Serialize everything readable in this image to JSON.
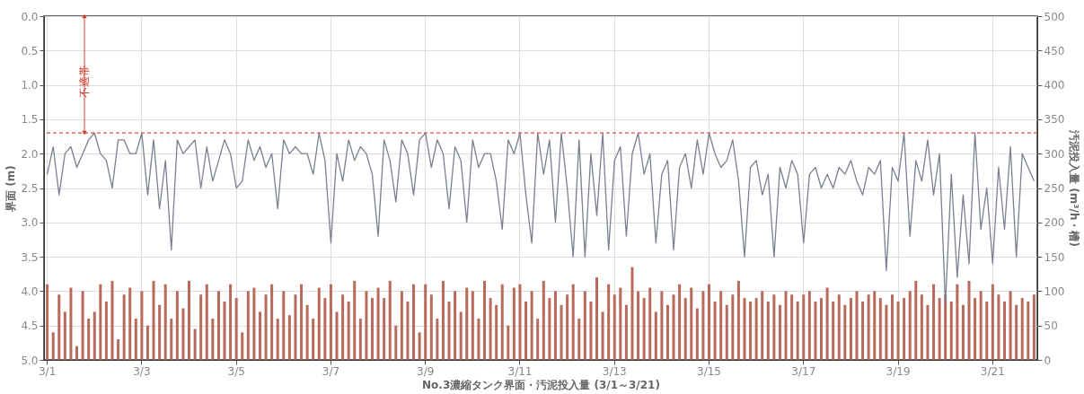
{
  "chart_data": {
    "type": "bar",
    "xlabel": "No.3濃縮タンク界面・汚泥投入量 (3/1～3/21)",
    "ylabel": "界面 (m)",
    "y2label": "汚泥投入量 (m³/h・槽)",
    "categories": [
      "3/1",
      null,
      null,
      null,
      null,
      null,
      null,
      null,
      null,
      null,
      null,
      null,
      null,
      null,
      null,
      null,
      "3/3",
      null,
      null,
      null,
      null,
      null,
      null,
      null,
      null,
      null,
      null,
      null,
      null,
      null,
      null,
      null,
      "3/5",
      null,
      null,
      null,
      null,
      null,
      null,
      null,
      null,
      null,
      null,
      null,
      null,
      null,
      null,
      null,
      "3/7",
      null,
      null,
      null,
      null,
      null,
      null,
      null,
      null,
      null,
      null,
      null,
      null,
      null,
      null,
      null,
      "3/9",
      null,
      null,
      null,
      null,
      null,
      null,
      null,
      null,
      null,
      null,
      null,
      null,
      null,
      null,
      null,
      "3/11",
      null,
      null,
      null,
      null,
      null,
      null,
      null,
      null,
      null,
      null,
      null,
      null,
      null,
      null,
      null,
      "3/13",
      null,
      null,
      null,
      null,
      null,
      null,
      null,
      null,
      null,
      null,
      null,
      null,
      null,
      null,
      null,
      "3/15",
      null,
      null,
      null,
      null,
      null,
      null,
      null,
      null,
      null,
      null,
      null,
      null,
      null,
      null,
      null,
      "3/17",
      null,
      null,
      null,
      null,
      null,
      null,
      null,
      null,
      null,
      null,
      null,
      null,
      null,
      null,
      null,
      "3/19",
      null,
      null,
      null,
      null,
      null,
      null,
      null,
      null,
      null,
      null,
      null,
      null,
      null,
      null,
      null,
      "3/21",
      null,
      null,
      null,
      null,
      null,
      null,
      null
    ],
    "series": [
      {
        "axis": "y2",
        "color": "#b86b5a",
        "values": [
          110,
          40,
          95,
          70,
          105,
          20,
          100,
          60,
          70,
          110,
          85,
          115,
          30,
          95,
          105,
          60,
          100,
          50,
          115,
          80,
          110,
          60,
          100,
          75,
          115,
          45,
          95,
          110,
          60,
          100,
          85,
          110,
          90,
          40,
          100,
          105,
          70,
          95,
          110,
          60,
          100,
          65,
          95,
          110,
          80,
          60,
          105,
          90,
          110,
          70,
          95,
          85,
          115,
          60,
          100,
          90,
          105,
          90,
          115,
          50,
          100,
          85,
          110,
          40,
          110,
          95,
          60,
          115,
          85,
          100,
          70,
          105,
          100,
          60,
          115,
          90,
          80,
          110,
          50,
          105,
          110,
          85,
          100,
          60,
          115,
          90,
          100,
          80,
          95,
          110,
          60,
          100,
          85,
          120,
          70,
          110,
          95,
          105,
          80,
          135,
          100,
          90,
          105,
          70,
          100,
          80,
          95,
          110,
          90,
          105,
          75,
          100,
          110,
          85,
          100,
          80,
          95,
          115,
          90,
          85,
          90,
          100,
          85,
          95,
          80,
          100,
          95,
          85,
          95,
          100,
          85,
          90,
          105,
          85,
          95,
          80,
          90,
          100,
          85,
          95,
          100,
          90,
          80,
          95,
          85,
          90,
          100,
          115,
          95,
          80,
          110,
          90,
          95,
          85,
          110,
          80,
          115,
          90,
          100,
          85,
          110,
          95,
          85,
          100,
          80,
          90,
          85,
          95
        ]
      },
      {
        "type": "line",
        "color": "#7a8090",
        "values": [
          2.3,
          1.9,
          2.6,
          2.0,
          1.9,
          2.2,
          2.0,
          1.8,
          1.7,
          2.0,
          2.1,
          2.5,
          1.8,
          1.8,
          2.0,
          2.0,
          1.7,
          2.6,
          1.8,
          2.8,
          2.1,
          3.4,
          1.8,
          2.0,
          1.9,
          1.8,
          2.5,
          1.9,
          2.4,
          2.1,
          1.8,
          2.0,
          2.5,
          2.4,
          1.8,
          2.1,
          1.9,
          2.2,
          2.0,
          2.8,
          1.8,
          2.0,
          1.9,
          2.0,
          2.0,
          2.3,
          1.7,
          2.1,
          3.3,
          2.0,
          2.4,
          1.8,
          2.1,
          1.9,
          2.0,
          2.3,
          3.2,
          1.8,
          2.1,
          2.7,
          1.8,
          2.0,
          2.6,
          1.8,
          1.7,
          2.2,
          1.8,
          2.0,
          2.8,
          1.9,
          2.1,
          3.0,
          1.8,
          2.2,
          2.0,
          2.0,
          2.4,
          3.1,
          1.8,
          2.0,
          1.7,
          2.6,
          3.3,
          1.7,
          2.3,
          1.8,
          3.0,
          1.7,
          2.5,
          3.5,
          1.8,
          3.5,
          2.0,
          2.9,
          1.7,
          3.4,
          2.1,
          1.9,
          3.2,
          2.0,
          1.7,
          2.3,
          2.0,
          3.3,
          2.3,
          2.1,
          3.4,
          2.2,
          2.0,
          2.5,
          1.8,
          2.3,
          1.7,
          2.0,
          2.2,
          2.1,
          1.8,
          2.4,
          3.5,
          2.2,
          2.1,
          2.6,
          2.3,
          3.5,
          2.2,
          2.5,
          2.1,
          2.3,
          3.3,
          2.3,
          2.2,
          2.5,
          2.3,
          2.5,
          2.2,
          2.3,
          2.1,
          2.4,
          2.6,
          2.2,
          2.3,
          2.1,
          3.7,
          2.2,
          2.4,
          1.7,
          3.2,
          2.1,
          2.4,
          1.8,
          2.6,
          2.0,
          4.2,
          2.3,
          3.8,
          2.6,
          3.6,
          1.7,
          3.1,
          2.5,
          3.6,
          2.2,
          3.1,
          1.9,
          3.5,
          2.0,
          2.2,
          2.4
        ]
      }
    ],
    "ylim": [
      5.0,
      0.0
    ],
    "yticks": [
      {
        "value": 0,
        "label": "0.0"
      },
      {
        "value": 0.5,
        "label": "0.5"
      },
      {
        "value": 1,
        "label": "1.0"
      },
      {
        "value": 1.5,
        "label": "1.5"
      },
      {
        "value": 2,
        "label": "2.0"
      },
      {
        "value": 2.5,
        "label": "2.5"
      },
      {
        "value": 3,
        "label": "3.0"
      },
      {
        "value": 3.5,
        "label": "3.5"
      },
      {
        "value": 4,
        "label": "4.0"
      },
      {
        "value": 4.5,
        "label": "4.5"
      },
      {
        "value": 5,
        "label": "5.0"
      }
    ],
    "y2lim": [
      0,
      500
    ],
    "y2ticks": [
      0,
      50,
      100,
      150,
      200,
      250,
      300,
      350,
      400,
      450,
      500
    ],
    "ref_lines": [
      {
        "axis": "y",
        "value": 1.7,
        "color": "#e05050",
        "line_style": "dashed"
      }
    ],
    "annotations": [
      "不適帯"
    ],
    "grid": true
  }
}
